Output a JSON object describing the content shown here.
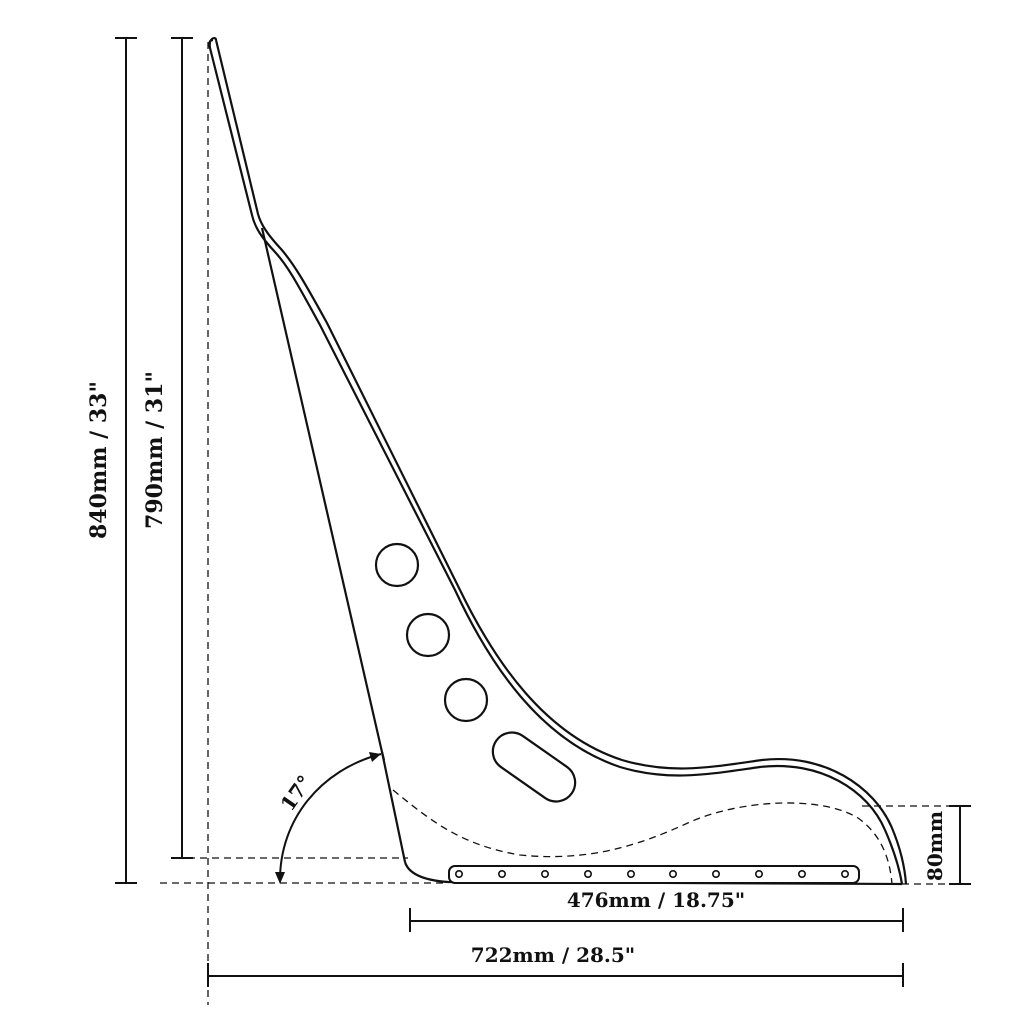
{
  "diagram": {
    "subject": "racing seat side profile",
    "dimensions": {
      "overall_height": "840mm / 33\"",
      "back_height": "790mm / 31\"",
      "base_length": "476mm / 18.75\"",
      "overall_length": "722mm / 28.5\"",
      "side_height": "80mm",
      "recline_angle": "17°"
    },
    "colors": {
      "line": "#111111",
      "background": "#ffffff"
    }
  }
}
